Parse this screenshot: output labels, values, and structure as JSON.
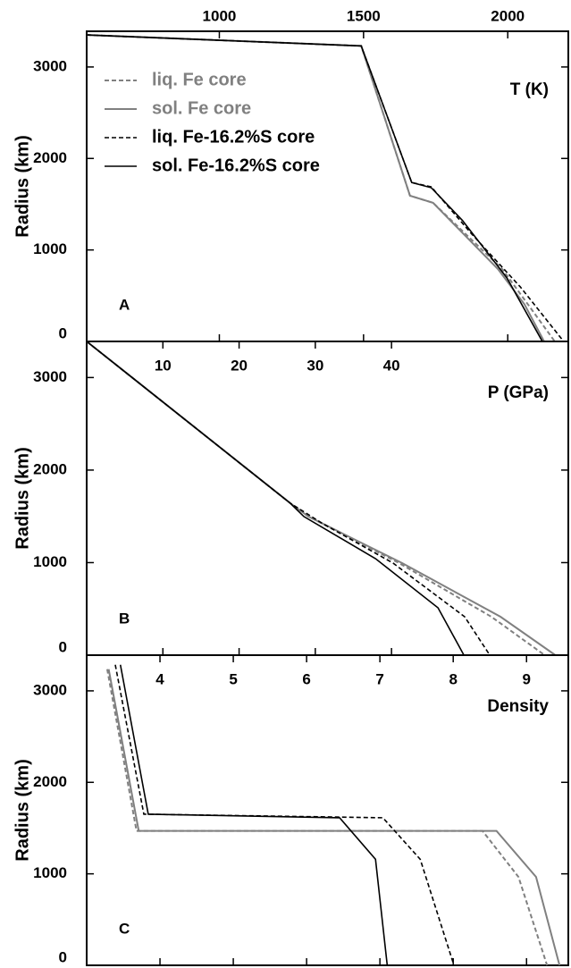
{
  "chart_data": [
    {
      "type": "line",
      "panel_label": "A",
      "xlabel": "T (K)",
      "ylabel": "Radius (km)",
      "xlim": [
        540,
        2210
      ],
      "xticks": [
        1000,
        1500,
        2000
      ],
      "ylim": [
        0,
        3390
      ],
      "yticks": [
        0,
        1000,
        2000,
        3000
      ],
      "legend": "upper left",
      "series": [
        {
          "name": "liq. Fe core",
          "color": "#808080",
          "dash": true,
          "x": [
            540,
            1492,
            1661,
            1741,
            1981,
            2070,
            2163
          ],
          "values": [
            3350,
            3230,
            1593,
            1515,
            791,
            405,
            0
          ]
        },
        {
          "name": "sol. Fe core",
          "color": "#808080",
          "dash": false,
          "x": [
            540,
            1492,
            1661,
            1741,
            1966,
            2058,
            2126
          ],
          "values": [
            3350,
            3230,
            1593,
            1515,
            791,
            405,
            0
          ]
        },
        {
          "name": "liq. Fe-16.2%S core",
          "color": "#000000",
          "dash": true,
          "x": [
            540,
            1492,
            1667,
            1735,
            1874,
            2043,
            2194
          ],
          "values": [
            3350,
            3230,
            1737,
            1689,
            1178,
            598,
            0
          ]
        },
        {
          "name": "sol. Fe-16.2%S core",
          "color": "#000000",
          "dash": false,
          "x": [
            540,
            1492,
            1667,
            1735,
            1843,
            1997,
            2120
          ],
          "values": [
            3350,
            3230,
            1737,
            1680,
            1322,
            695,
            0
          ]
        }
      ]
    },
    {
      "type": "line",
      "panel_label": "B",
      "xlabel": "P (GPa)",
      "ylabel": "Radius (km)",
      "xlim": [
        0,
        63.2
      ],
      "xticks": [
        10,
        20,
        30,
        40
      ],
      "ylim": [
        0,
        3390
      ],
      "yticks": [
        0,
        1000,
        2000,
        3000
      ],
      "series": [
        {
          "color": "#808080",
          "dash": true,
          "x": [
            0,
            26.7,
            29.1,
            41.0,
            53.1,
            60.1
          ],
          "values": [
            3390,
            1643,
            1498,
            995,
            415,
            0
          ]
        },
        {
          "color": "#808080",
          "dash": false,
          "x": [
            0,
            26.7,
            29.1,
            41.4,
            54.3,
            61.5
          ],
          "values": [
            3390,
            1643,
            1498,
            995,
            415,
            0
          ]
        },
        {
          "color": "#000000",
          "dash": true,
          "x": [
            0,
            26.7,
            30.8,
            40.2,
            49.6,
            52.9
          ],
          "values": [
            3390,
            1643,
            1430,
            995,
            415,
            0
          ]
        },
        {
          "color": "#000000",
          "dash": false,
          "x": [
            0,
            26.7,
            28.5,
            37.9,
            46.1,
            49.5
          ],
          "values": [
            3390,
            1643,
            1498,
            1043,
            512,
            0
          ]
        }
      ]
    },
    {
      "type": "line",
      "panel_label": "C",
      "xlabel": "Density",
      "ylabel": "Radius (km)",
      "xlim": [
        3,
        9.57
      ],
      "xticks": [
        4,
        5,
        6,
        7,
        8,
        9
      ],
      "ylim": [
        0,
        3390
      ],
      "yticks": [
        0,
        1000,
        2000,
        3000
      ],
      "series": [
        {
          "color": "#808080",
          "dash": true,
          "x": [
            3.28,
            3.68,
            8.4,
            8.89,
            9.28
          ],
          "values": [
            3237,
            1469,
            1469,
            966,
            0
          ]
        },
        {
          "color": "#808080",
          "dash": false,
          "x": [
            3.3,
            3.71,
            8.59,
            9.13,
            9.45
          ],
          "values": [
            3237,
            1469,
            1469,
            966,
            0
          ]
        },
        {
          "color": "#000000",
          "dash": true,
          "x": [
            3.39,
            3.78,
            7.04,
            7.55,
            8.01
          ],
          "values": [
            3285,
            1652,
            1613,
            1159,
            0
          ]
        },
        {
          "color": "#000000",
          "dash": false,
          "x": [
            3.46,
            3.84,
            6.45,
            6.94,
            7.1
          ],
          "values": [
            3285,
            1652,
            1613,
            1159,
            0
          ]
        }
      ]
    }
  ]
}
